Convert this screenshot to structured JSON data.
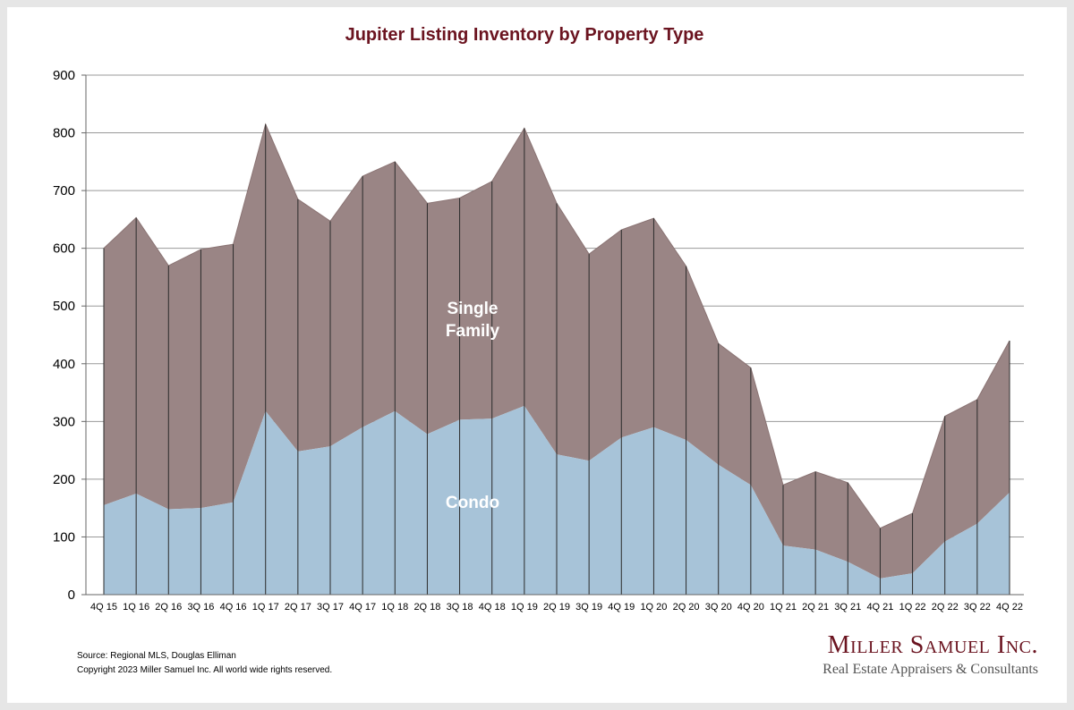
{
  "page": {
    "source": "Source: Regional MLS, Douglas Elliman",
    "copyright": "Copyright 2023 Miller Samuel Inc.  All world wide rights reserved.",
    "brand_name": "Miller Samuel Inc.",
    "brand_tagline": "Real Estate Appraisers & Consultants"
  },
  "colors": {
    "condo": "#a7c3d8",
    "single_family": "#9a8585",
    "title": "#6b1420",
    "grid": "#999999"
  },
  "chart_data": {
    "type": "area",
    "stacked": true,
    "title": "Jupiter Listing Inventory by Property Type",
    "xlabel": "",
    "ylabel": "",
    "ylim": [
      0,
      900
    ],
    "yticks": [
      0,
      100,
      200,
      300,
      400,
      500,
      600,
      700,
      800,
      900
    ],
    "grid": true,
    "categories": [
      "4Q 15",
      "1Q 16",
      "2Q 16",
      "3Q 16",
      "4Q 16",
      "1Q 17",
      "2Q 17",
      "3Q 17",
      "4Q 17",
      "1Q 18",
      "2Q 18",
      "3Q 18",
      "4Q 18",
      "1Q 19",
      "2Q 19",
      "3Q 19",
      "4Q 19",
      "1Q 20",
      "2Q 20",
      "3Q 20",
      "4Q 20",
      "1Q 21",
      "2Q 21",
      "3Q 21",
      "4Q 21",
      "1Q 22",
      "2Q 22",
      "3Q 22",
      "4Q 22"
    ],
    "series": [
      {
        "name": "Condo",
        "values": [
          155,
          175,
          148,
          150,
          160,
          318,
          248,
          257,
          290,
          318,
          278,
          303,
          305,
          327,
          243,
          232,
          272,
          290,
          268,
          225,
          190,
          85,
          78,
          57,
          28,
          37,
          92,
          123,
          177
        ]
      },
      {
        "name": "Single Family",
        "values": [
          445,
          478,
          422,
          448,
          447,
          497,
          437,
          390,
          435,
          432,
          400,
          384,
          411,
          481,
          435,
          358,
          360,
          362,
          301,
          210,
          203,
          105,
          135,
          137,
          87,
          104,
          217,
          215,
          263
        ]
      }
    ],
    "totals": [
      600,
      653,
      570,
      598,
      607,
      815,
      685,
      647,
      725,
      750,
      678,
      687,
      716,
      808,
      678,
      590,
      632,
      652,
      569,
      435,
      393,
      190,
      213,
      194,
      115,
      141,
      309,
      338,
      440
    ]
  }
}
